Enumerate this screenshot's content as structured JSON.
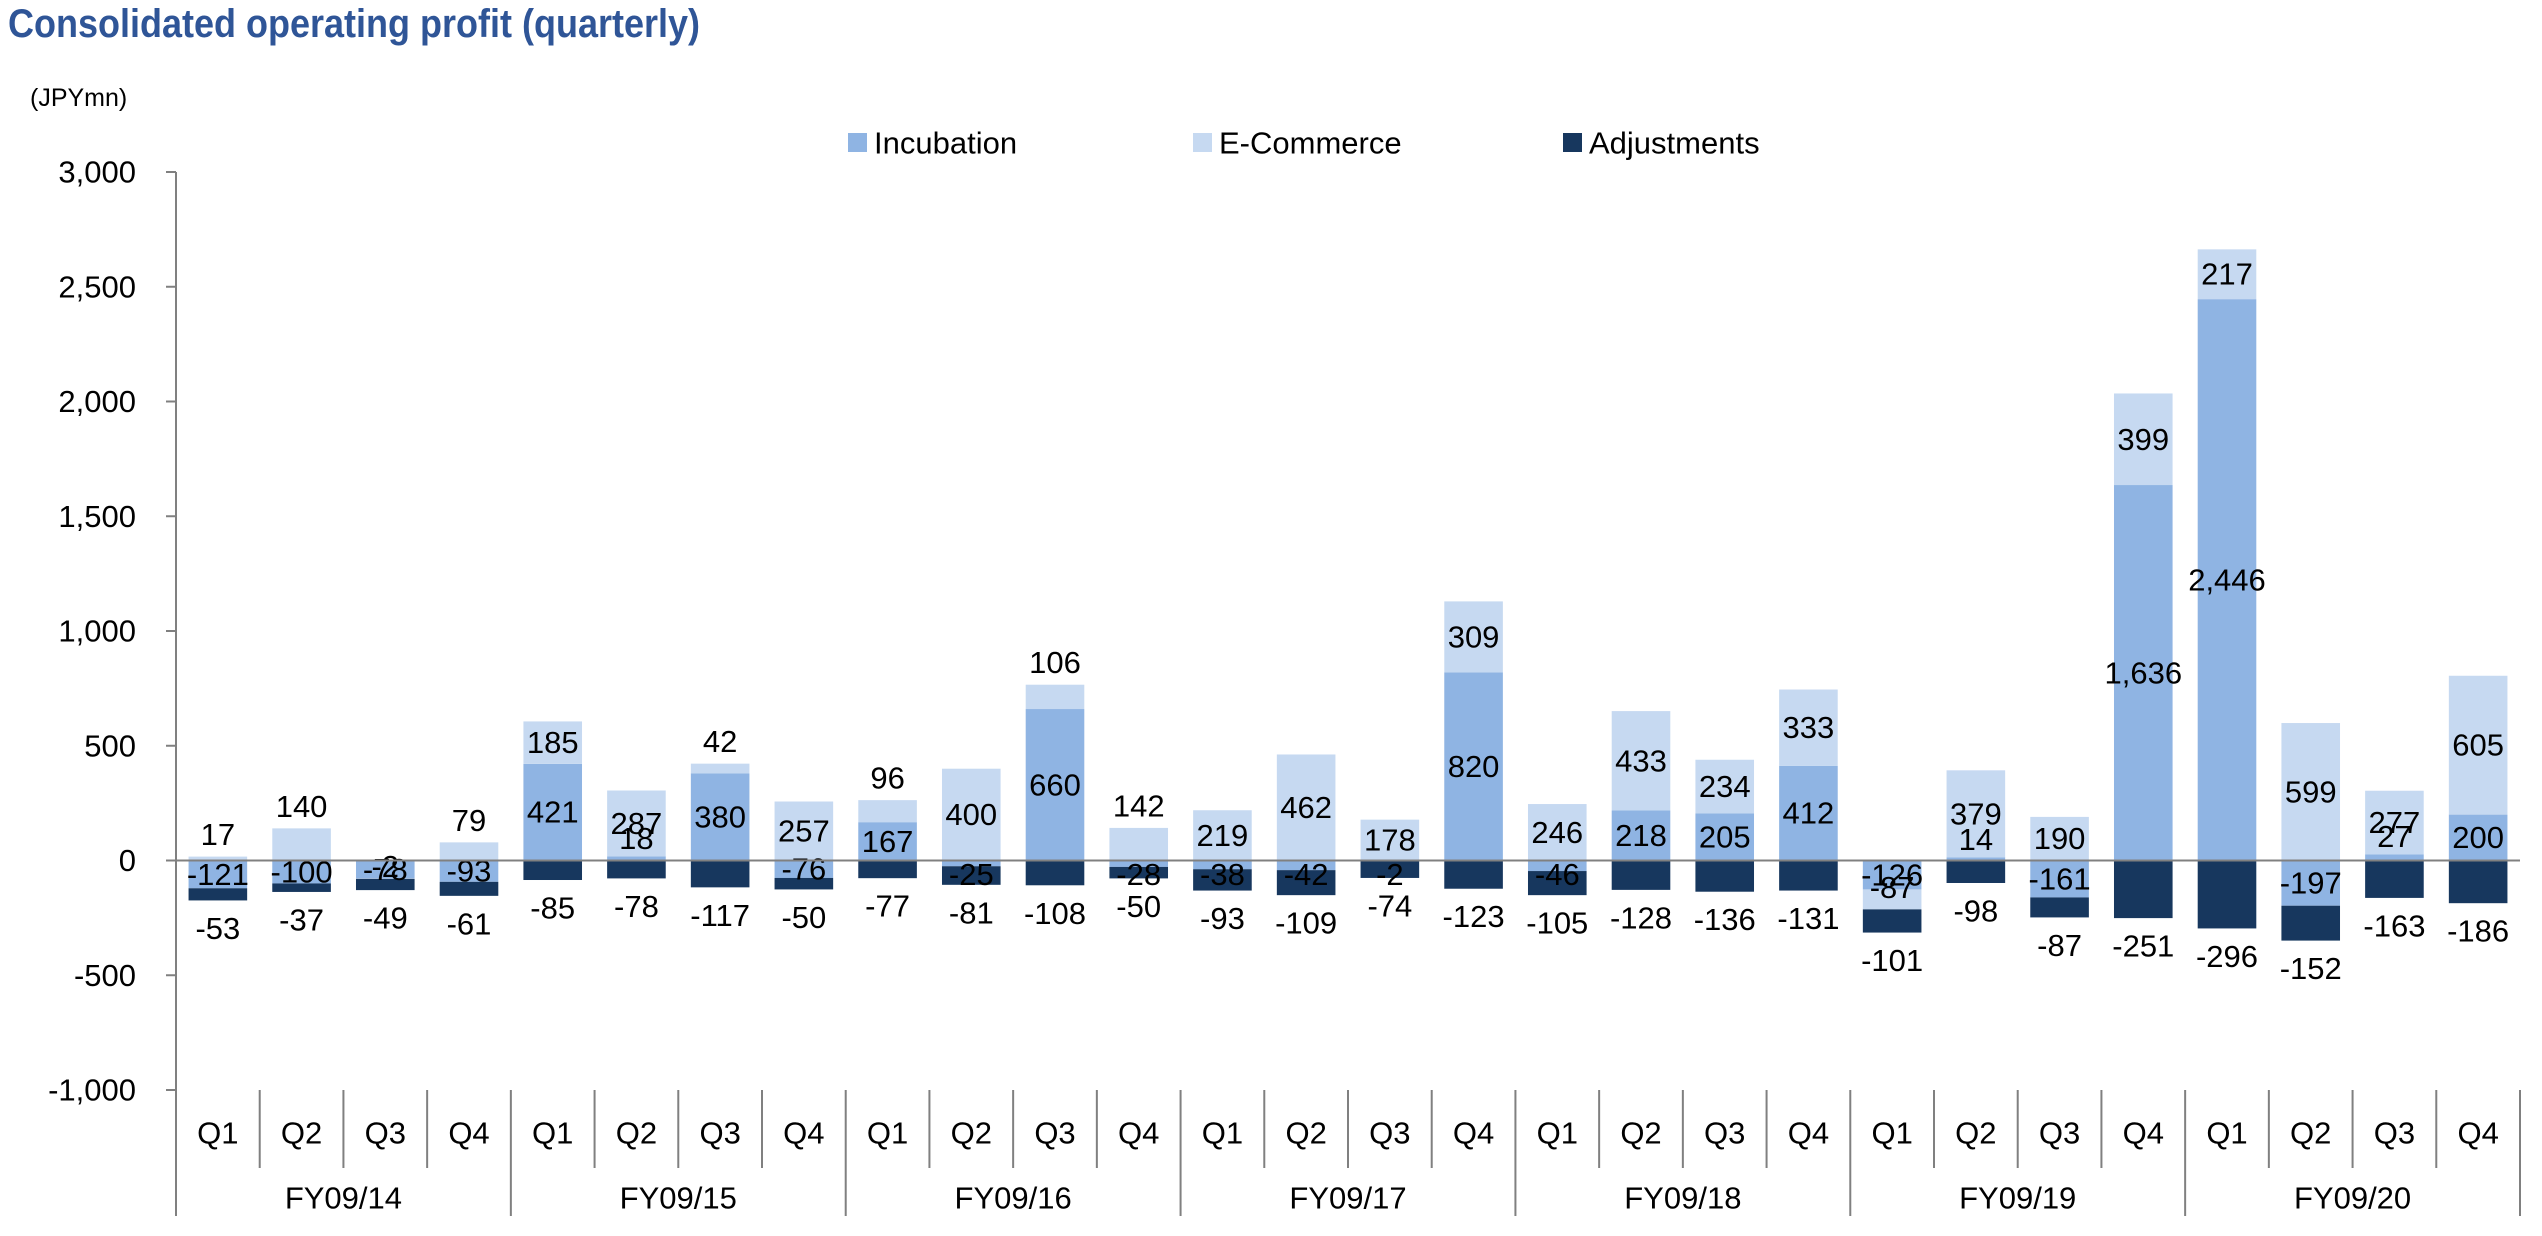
{
  "title": "Consolidated operating profit (quarterly)",
  "colors": {
    "incubation": "#8fb4e3",
    "ecommerce": "#c6d9f1",
    "adjustments": "#17375e",
    "axis": "#808080"
  },
  "chart_data": {
    "type": "bar",
    "stacked": true,
    "title": "Consolidated operating profit (quarterly)",
    "ylabel": "(JPYmn)",
    "xlabel": "",
    "ylim": [
      -1000,
      3000
    ],
    "yticks": [
      {
        "v": 3000,
        "label": "3,000"
      },
      {
        "v": 2500,
        "label": "2,500"
      },
      {
        "v": 2000,
        "label": "2,000"
      },
      {
        "v": 1500,
        "label": "1,500"
      },
      {
        "v": 1000,
        "label": "1,000"
      },
      {
        "v": 500,
        "label": "500"
      },
      {
        "v": 0,
        "label": "0"
      },
      {
        "v": -500,
        "label": "-500"
      },
      {
        "v": -1000,
        "label": "-1,000"
      }
    ],
    "legend": [
      "Incubation",
      "E-Commerce",
      "Adjustments"
    ],
    "legend_position": "top",
    "fiscal_years": [
      "FY09/14",
      "FY09/15",
      "FY09/16",
      "FY09/17",
      "FY09/18",
      "FY09/19",
      "FY09/20"
    ],
    "quarters": [
      "Q1",
      "Q2",
      "Q3",
      "Q4"
    ],
    "series": [
      {
        "name": "Incubation",
        "values": [
          -121,
          -100,
          -78,
          -93,
          421,
          18,
          380,
          -76,
          167,
          -25,
          660,
          -28,
          -38,
          -42,
          -2,
          820,
          -46,
          218,
          205,
          412,
          -126,
          14,
          -161,
          1636,
          2446,
          -197,
          27,
          200
        ]
      },
      {
        "name": "E-Commerce",
        "values": [
          17,
          140,
          -2,
          79,
          185,
          287,
          42,
          257,
          96,
          400,
          106,
          142,
          219,
          462,
          178,
          309,
          246,
          433,
          234,
          333,
          -87,
          379,
          190,
          399,
          217,
          599,
          277,
          605
        ]
      },
      {
        "name": "Adjustments",
        "values": [
          -53,
          -37,
          -49,
          -61,
          -85,
          -78,
          -117,
          -50,
          -77,
          -81,
          -108,
          -50,
          -93,
          -109,
          -74,
          -123,
          -105,
          -128,
          -136,
          -131,
          -101,
          -98,
          -87,
          -251,
          -296,
          -152,
          -163,
          -186
        ]
      }
    ]
  }
}
